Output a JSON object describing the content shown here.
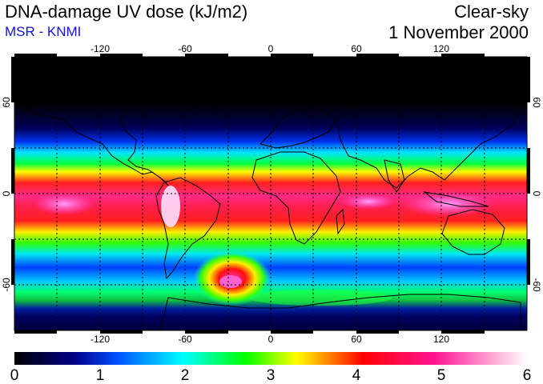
{
  "header": {
    "title": "DNA-damage UV dose (kJ/m2)",
    "subtitle": "MSR - KNMI",
    "condition": "Clear-sky",
    "date": "1 November 2000"
  },
  "map": {
    "projection": "equirectangular",
    "lon_range": [
      -180,
      180
    ],
    "lat_range": [
      -90,
      90
    ],
    "grid_lines": "dashed",
    "lon_ticks": [
      {
        "value": -120,
        "label": "-120"
      },
      {
        "value": -60,
        "label": "-60"
      },
      {
        "value": 0,
        "label": "0"
      },
      {
        "value": 60,
        "label": "60"
      },
      {
        "value": 120,
        "label": "120"
      }
    ],
    "lat_ticks": [
      {
        "value": 60,
        "label": "60"
      },
      {
        "value": 0,
        "label": "0"
      },
      {
        "value": -60,
        "label": "-60"
      }
    ],
    "right_lat_ticks": [
      {
        "value": 60,
        "label": "60"
      },
      {
        "value": 0,
        "label": "0"
      },
      {
        "value": -60,
        "label": "-60"
      }
    ],
    "colors": {
      "polar_night": "#000000",
      "coastline": "#000000",
      "grid": "#000000"
    }
  },
  "colorbar": {
    "min": 0,
    "max": 6,
    "tick_labels": [
      "0",
      "1",
      "2",
      "3",
      "4",
      "5",
      "6"
    ],
    "stops": [
      "#000000",
      "#00008b",
      "#0050ff",
      "#00ffff",
      "#00ff00",
      "#ffff00",
      "#ff0000",
      "#ff1493",
      "#ffffff"
    ]
  }
}
